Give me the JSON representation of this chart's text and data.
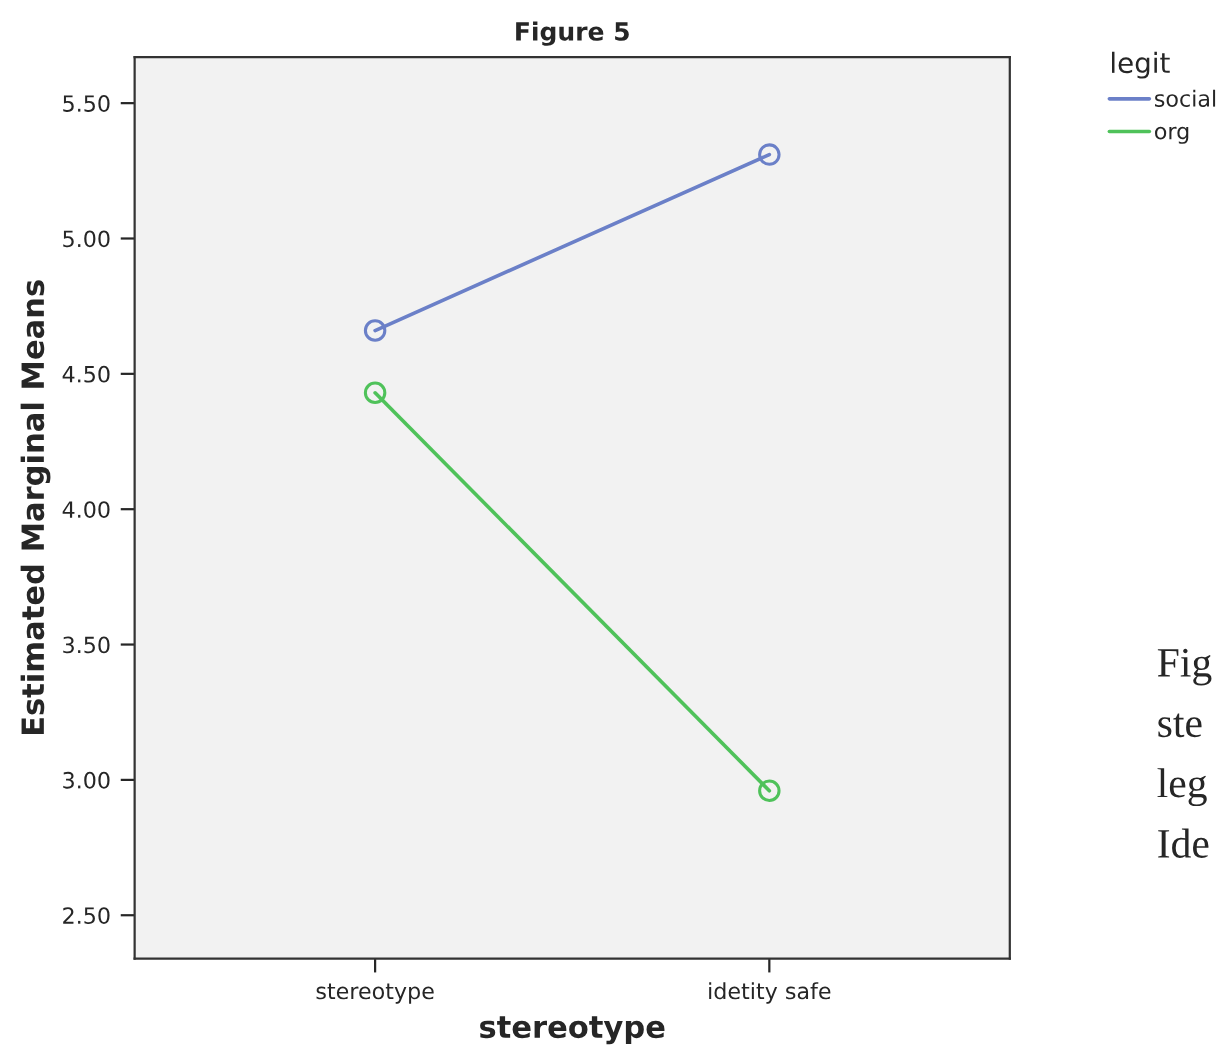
{
  "chart_data": {
    "type": "line",
    "title": "Figure 5",
    "xlabel": "stereotype",
    "ylabel": "Estimated Marginal Means",
    "legend_title": "legit",
    "categories": [
      "stereotype",
      "idetity safe"
    ],
    "series": [
      {
        "name": "social",
        "color": "#6b80c8",
        "values": [
          4.66,
          5.31
        ]
      },
      {
        "name": "org",
        "color": "#4fc25a",
        "values": [
          4.43,
          2.96
        ]
      }
    ],
    "ylim": [
      2.34,
      5.67
    ],
    "yticks": [
      {
        "value": 2.5,
        "label": "2.50"
      },
      {
        "value": 3.0,
        "label": "3.00"
      },
      {
        "value": 3.5,
        "label": "3.50"
      },
      {
        "value": 4.0,
        "label": "4.00"
      },
      {
        "value": 4.5,
        "label": "4.50"
      },
      {
        "value": 5.0,
        "label": "5.00"
      },
      {
        "value": 5.5,
        "label": "5.50"
      }
    ],
    "grid": false,
    "legend": "top right",
    "marker": "circle",
    "line_style": "solid",
    "annotations": [
      "Fig",
      "ste",
      "leg",
      "Ide"
    ]
  }
}
